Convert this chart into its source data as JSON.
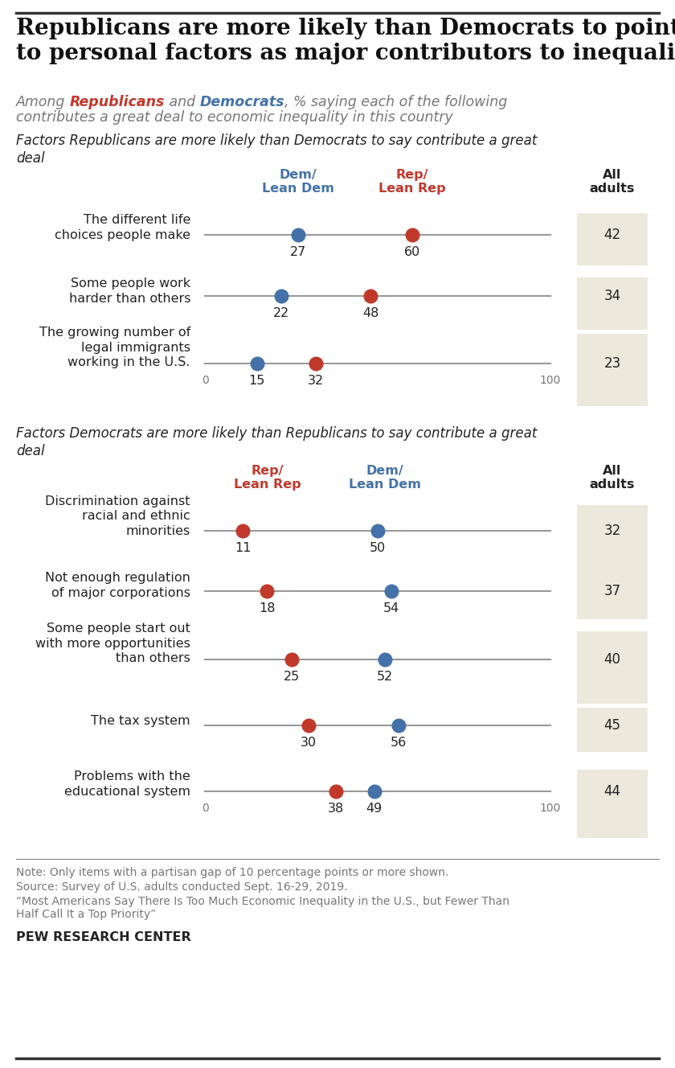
{
  "title": "Republicans are more likely than Democrats to point\nto personal factors as major contributors to inequality",
  "sub_intro": "Among ",
  "sub_rep": "Republicans",
  "sub_and": " and ",
  "sub_dem": "Democrats",
  "sub_rest": ", % saying each of the following",
  "sub_rest2": "contributes a great deal to economic inequality in this country",
  "section1_header": "Factors Republicans are more likely than Democrats to say contribute a great\ndeal",
  "section1_col1_label": "Dem/\nLean Dem",
  "section1_col2_label": "Rep/\nLean Rep",
  "section2_header": "Factors Democrats are more likely than Republicans to say contribute a great\ndeal",
  "section2_col1_label": "Rep/\nLean Rep",
  "section2_col2_label": "Dem/\nLean Dem",
  "section1_items": [
    {
      "label": "The different life\nchoices people make",
      "dem": 27,
      "rep": 60,
      "all": 42
    },
    {
      "label": "Some people work\nharder than others",
      "dem": 22,
      "rep": 48,
      "all": 34
    },
    {
      "label": "The growing number of\nlegal immigrants\nworking in the U.S.",
      "dem": 15,
      "rep": 32,
      "all": 23
    }
  ],
  "section2_items": [
    {
      "label": "Discrimination against\nracial and ethnic\nminorities",
      "rep": 11,
      "dem": 50,
      "all": 32
    },
    {
      "label": "Not enough regulation\nof major corporations",
      "rep": 18,
      "dem": 54,
      "all": 37
    },
    {
      "label": "Some people start out\nwith more opportunities\nthan others",
      "rep": 25,
      "dem": 52,
      "all": 40
    },
    {
      "label": "The tax system",
      "rep": 30,
      "dem": 56,
      "all": 45
    },
    {
      "label": "Problems with the\neducational system",
      "rep": 38,
      "dem": 49,
      "all": 44
    }
  ],
  "note_line1": "Note: Only items with a partisan gap of 10 percentage points or more shown.",
  "note_line2": "Source: Survey of U.S. adults conducted Sept. 16-29, 2019.",
  "note_line3": "“Most Americans Say There Is Too Much Economic Inequality in the U.S., but Fewer Than\nHalf Call It a Top Priority”",
  "branding": "PEW RESEARCH CENTER",
  "bg_color": "#ffffff",
  "all_adults_bg": "#ede8dc",
  "line_color": "#999999",
  "dem_color": "#4472a8",
  "rep_color": "#c0392b",
  "text_color": "#222222",
  "gray_text": "#777777",
  "top_rule_color": "#333333",
  "bottom_rule_color": "#aaaaaa",
  "footer_rule_color": "#888888"
}
